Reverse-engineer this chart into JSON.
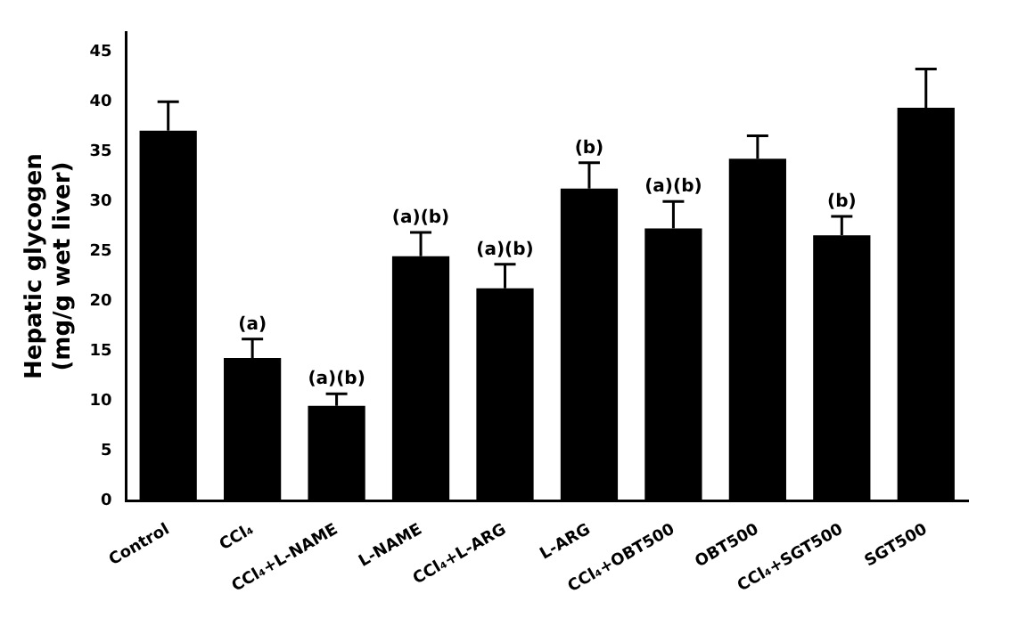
{
  "chart_data": {
    "type": "bar",
    "ylabel": "Hepatic glycogen\n(mg/g wet liver)",
    "categories": [
      "Control",
      "CCl₄",
      "CCl₄+L-NAME",
      "L-NAME",
      "CCl₄+L-ARG",
      "L-ARG",
      "CCl₄+OBT500",
      "OBT500",
      "CCl₄+SGT500",
      "SGT500"
    ],
    "values": [
      37.1,
      14.3,
      9.5,
      24.5,
      21.3,
      31.3,
      27.3,
      34.3,
      26.6,
      39.4
    ],
    "errors": [
      [
        37.1,
        40.0
      ],
      [
        14.3,
        16.2
      ],
      [
        9.5,
        10.7
      ],
      [
        24.5,
        26.9
      ],
      [
        21.3,
        23.7
      ],
      [
        31.3,
        33.9
      ],
      [
        27.3,
        30.0
      ],
      [
        34.3,
        36.6
      ],
      [
        26.6,
        28.5
      ],
      [
        39.4,
        43.3
      ]
    ],
    "color": "#000000",
    "ylim": [
      0,
      47
    ],
    "yticks": [
      0,
      5,
      10,
      15,
      20,
      25,
      30,
      35,
      40,
      45
    ],
    "grid": false,
    "legend": false,
    "annotations": [
      {
        "text": "(a)",
        "x": "CCl₄",
        "y": 16.2
      },
      {
        "text": "(a)(b)",
        "x": "CCl₄+L-NAME",
        "y": 10.7
      },
      {
        "text": "(a)(b)",
        "x": "L-NAME",
        "y": 26.9
      },
      {
        "text": "(a)(b)",
        "x": "CCl₄+L-ARG",
        "y": 23.7
      },
      {
        "text": "(b)",
        "x": "L-ARG",
        "y": 33.9
      },
      {
        "text": "(a)(b)",
        "x": "CCl₄+OBT500",
        "y": 30.0
      },
      {
        "text": "(b)",
        "x": "CCl₄+SGT500",
        "y": 28.5
      }
    ]
  }
}
